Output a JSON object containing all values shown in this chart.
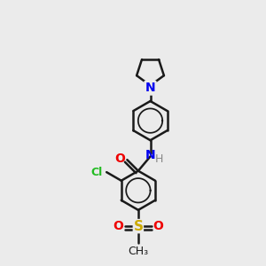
{
  "bg_color": "#ebebeb",
  "bond_color": "#1a1a1a",
  "N_color": "#0000ee",
  "O_color": "#ee0000",
  "Cl_color": "#22bb22",
  "S_color": "#ccaa00",
  "H_color": "#888888",
  "bond_width": 1.8,
  "figsize": [
    3.0,
    3.0
  ],
  "dpi": 100,
  "xlim": [
    0,
    6
  ],
  "ylim": [
    0,
    10
  ]
}
